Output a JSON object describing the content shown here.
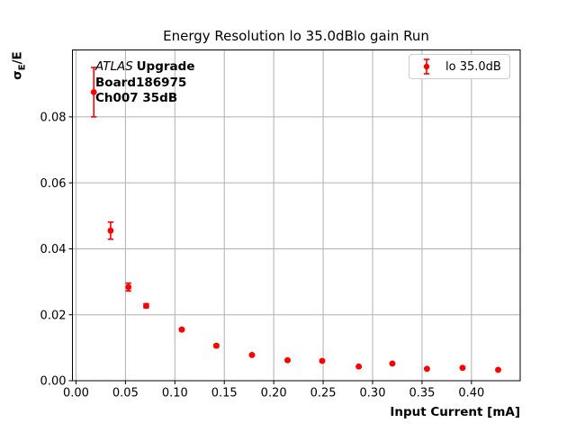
{
  "figure": {
    "title": "Energy Resolution lo 35.0dBlo gain Run",
    "xlabel": "Input Current [mA]",
    "ylabel": {
      "sigma": "σ",
      "sub": "E",
      "rest": "/E"
    },
    "annotation": {
      "line1_italic": "ATLAS",
      "line1_bold": "Upgrade",
      "line2": "Board186975",
      "line3": "Ch007 35dB"
    },
    "legend": {
      "label": "lo 35.0dB"
    },
    "colors": {
      "series": "#ff0000",
      "grid": "#b0b0b0",
      "spine": "#000000",
      "text": "#000000",
      "legend_border": "#cccccc",
      "background": "#ffffff"
    }
  },
  "chart_data": {
    "type": "scatter",
    "title": "Energy Resolution lo 35.0dBlo gain Run",
    "xlabel": "Input Current [mA]",
    "ylabel": "sigma_E/E",
    "grid": true,
    "legend_position": "upper right",
    "xlim": [
      -0.0036,
      0.4493
    ],
    "ylim": [
      0,
      0.1003
    ],
    "xticks": {
      "values": [
        0,
        0.05,
        0.1,
        0.15,
        0.2,
        0.25,
        0.3,
        0.35,
        0.4
      ],
      "labels": [
        "0.00",
        "0.05",
        "0.10",
        "0.15",
        "0.20",
        "0.25",
        "0.30",
        "0.35",
        "0.40"
      ]
    },
    "yticks": {
      "values": [
        0,
        0.02,
        0.04,
        0.06,
        0.08
      ],
      "labels": [
        "0.00",
        "0.02",
        "0.04",
        "0.06",
        "0.08"
      ]
    },
    "series": [
      {
        "name": "lo 35.0dB",
        "color": "#ff0000",
        "marker": "o",
        "x": [
          0.018,
          0.035,
          0.053,
          0.071,
          0.107,
          0.142,
          0.178,
          0.214,
          0.249,
          0.286,
          0.32,
          0.355,
          0.391,
          0.427
        ],
        "y": [
          0.0875,
          0.0455,
          0.0284,
          0.0227,
          0.0155,
          0.0106,
          0.0078,
          0.0062,
          0.006,
          0.0043,
          0.0052,
          0.0036,
          0.0039,
          0.0033
        ],
        "yerr": [
          0.0075,
          0.0026,
          0.0012,
          0.0006,
          0.0004,
          0.0004,
          0.0003,
          0.0003,
          0.0003,
          0.0002,
          0.0002,
          0.0002,
          0.0002,
          0.0002
        ]
      }
    ]
  }
}
